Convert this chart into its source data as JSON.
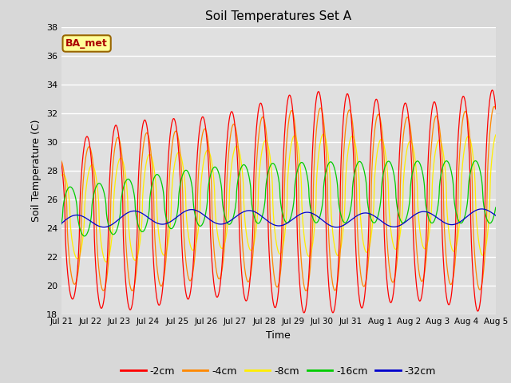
{
  "title": "Soil Temperatures Set A",
  "xlabel": "Time",
  "ylabel": "Soil Temperature (C)",
  "ylim": [
    18,
    38
  ],
  "yticks": [
    18,
    20,
    22,
    24,
    26,
    28,
    30,
    32,
    34,
    36,
    38
  ],
  "colors": {
    "-2cm": "#ff0000",
    "-4cm": "#ff8800",
    "-8cm": "#ffee00",
    "-16cm": "#00cc00",
    "-32cm": "#0000cc"
  },
  "legend_label": "BA_met",
  "legend_bg": "#ffff99",
  "legend_border": "#996600",
  "fig_bg": "#d8d8d8",
  "plot_bg": "#e0e0e0",
  "n_points": 1500,
  "x_start": 0,
  "x_end": 15.0,
  "xtick_positions": [
    0,
    1,
    2,
    3,
    4,
    5,
    6,
    7,
    8,
    9,
    10,
    11,
    12,
    13,
    14,
    15
  ],
  "xtick_labels": [
    "Jul 21",
    "Jul 22",
    "Jul 23",
    "Jul 24",
    "Jul 25",
    "Jul 26",
    "Jul 27",
    "Jul 28",
    "Jul 29",
    "Jul 30",
    "Jul 31",
    "Aug 1",
    "Aug 2",
    "Aug 3",
    "Aug 4",
    "Aug 5"
  ]
}
